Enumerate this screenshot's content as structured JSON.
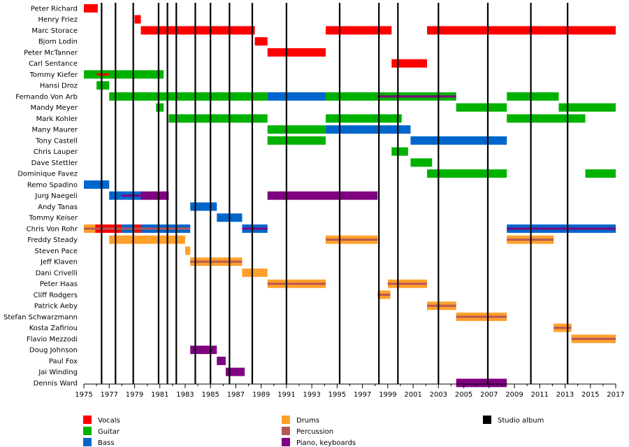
{
  "chart_data": {
    "type": "timeline",
    "title": "",
    "x_axis": {
      "min": 1975,
      "max": 2017,
      "tick_labels": [
        "1975",
        "1977",
        "1979",
        "1981",
        "1983",
        "1985",
        "1987",
        "1989",
        "1991",
        "1993",
        "1995",
        "1997",
        "1999",
        "2001",
        "2003",
        "2005",
        "2007",
        "2009",
        "2011",
        "2013",
        "2015",
        "2017"
      ]
    },
    "studio_albums": [
      1976.4,
      1977.5,
      1978.9,
      1980.9,
      1981.6,
      1982.3,
      1983.8,
      1985.0,
      1986.5,
      1988.3,
      1991.0,
      1995.2,
      1998.3,
      1999.8,
      2003.0,
      2006.9,
      2010.3,
      2013.2
    ],
    "legend": [
      {
        "key": "vocals",
        "label": "Vocals",
        "color": "#ff0000"
      },
      {
        "key": "guitar",
        "label": "Guitar",
        "color": "#00b200"
      },
      {
        "key": "bass",
        "label": "Bass",
        "color": "#0066cc"
      },
      {
        "key": "drums",
        "label": "Drums",
        "color": "#ffa02b"
      },
      {
        "key": "percussion",
        "label": "Percussion",
        "color": "#b65757"
      },
      {
        "key": "keys",
        "label": "Piano, keyboards",
        "color": "#7f0080"
      },
      {
        "key": "album",
        "label": "Studio album",
        "color": "#000000"
      }
    ],
    "members": [
      {
        "name": "Peter Richard",
        "bars": [
          [
            "vocals",
            1975.0,
            1976.1
          ]
        ]
      },
      {
        "name": "Henry Friez",
        "bars": [
          [
            "vocals",
            1979.0,
            1979.5
          ]
        ]
      },
      {
        "name": "Marc Storace",
        "bars": [
          [
            "vocals",
            1979.5,
            1988.5
          ],
          [
            "vocals",
            1994.1,
            1999.3
          ],
          [
            "vocals",
            2002.1,
            2017.0
          ]
        ]
      },
      {
        "name": "Bjorn Lodin",
        "bars": [
          [
            "vocals",
            1988.5,
            1989.5
          ]
        ]
      },
      {
        "name": "Peter McTanner",
        "bars": [
          [
            "vocals",
            1989.5,
            1994.1
          ]
        ]
      },
      {
        "name": "Carl Sentance",
        "bars": [
          [
            "vocals",
            1999.3,
            2002.1
          ]
        ]
      },
      {
        "name": "Tommy Kiefer",
        "bars": [
          [
            "guitar",
            1975.0,
            1981.3
          ]
        ],
        "thin": [
          [
            "vocals",
            1976.0,
            1977.0
          ]
        ]
      },
      {
        "name": "Hansi Droz",
        "bars": [
          [
            "guitar",
            1976.0,
            1977.0
          ]
        ]
      },
      {
        "name": "Fernando Von Arb",
        "bars": [
          [
            "guitar",
            1977.0,
            1989.5
          ],
          [
            "bass",
            1989.5,
            1994.1
          ],
          [
            "guitar",
            1994.1,
            2004.4
          ],
          [
            "guitar",
            2008.4,
            2012.5
          ]
        ],
        "thin": [
          [
            "keys",
            1998.2,
            2004.4
          ]
        ]
      },
      {
        "name": "Mandy Meyer",
        "bars": [
          [
            "guitar",
            1980.7,
            1981.3
          ],
          [
            "guitar",
            2004.4,
            2008.4
          ],
          [
            "guitar",
            2012.5,
            2017.0
          ]
        ]
      },
      {
        "name": "Mark Kohler",
        "bars": [
          [
            "guitar",
            1981.7,
            1989.5
          ],
          [
            "guitar",
            1994.1,
            2000.1
          ],
          [
            "guitar",
            2008.4,
            2014.6
          ]
        ]
      },
      {
        "name": "Many Maurer",
        "bars": [
          [
            "guitar",
            1989.5,
            1994.1
          ],
          [
            "bass",
            1994.1,
            2000.8
          ]
        ]
      },
      {
        "name": "Tony Castell",
        "bars": [
          [
            "guitar",
            1989.5,
            1994.1
          ],
          [
            "bass",
            2000.8,
            2008.4
          ]
        ]
      },
      {
        "name": "Chris Lauper",
        "bars": [
          [
            "guitar",
            1999.3,
            2000.6
          ]
        ]
      },
      {
        "name": "Dave Stettler",
        "bars": [
          [
            "guitar",
            2000.8,
            2002.5
          ]
        ]
      },
      {
        "name": "Dominique Favez",
        "bars": [
          [
            "guitar",
            2002.1,
            2008.4
          ],
          [
            "guitar",
            2014.6,
            2017.0
          ]
        ]
      },
      {
        "name": "Remo Spadino",
        "bars": [
          [
            "bass",
            1975.0,
            1977.0
          ]
        ]
      },
      {
        "name": "Jurg Naegeli",
        "bars": [
          [
            "bass",
            1977.0,
            1979.5
          ],
          [
            "keys",
            1979.5,
            1981.7
          ],
          [
            "keys",
            1989.5,
            1998.2
          ]
        ],
        "thin": [
          [
            "keys",
            1978.0,
            1979.5
          ]
        ]
      },
      {
        "name": "Andy Tanas",
        "bars": [
          [
            "bass",
            1983.4,
            1985.5
          ]
        ]
      },
      {
        "name": "Tommy Keiser",
        "bars": [
          [
            "bass",
            1985.5,
            1987.5
          ]
        ]
      },
      {
        "name": "Chris Von Rohr",
        "bars": [
          [
            "drums",
            1975.0,
            1975.9
          ],
          [
            "vocals",
            1975.9,
            1978.0
          ],
          [
            "bass",
            1978.0,
            1979.0
          ],
          [
            "vocals",
            1979.0,
            1979.5
          ],
          [
            "bass",
            1979.5,
            1983.4
          ],
          [
            "bass",
            1987.5,
            1989.5
          ],
          [
            "bass",
            2008.4,
            2017.0
          ]
        ],
        "thin": [
          [
            "percussion",
            1975.0,
            1983.4
          ],
          [
            "keys",
            1987.5,
            1989.5
          ],
          [
            "keys",
            2008.4,
            2017.0
          ]
        ]
      },
      {
        "name": "Freddy Steady",
        "bars": [
          [
            "drums",
            1977.0,
            1983.0
          ],
          [
            "drums",
            1994.1,
            1998.2
          ],
          [
            "drums",
            2008.4,
            2012.1
          ]
        ],
        "thin": [
          [
            "percussion",
            1994.1,
            1998.2
          ],
          [
            "percussion",
            2008.4,
            2012.1
          ]
        ]
      },
      {
        "name": "Steven Pace",
        "bars": [
          [
            "drums",
            1983.0,
            1983.4
          ]
        ]
      },
      {
        "name": "Jeff Klaven",
        "bars": [
          [
            "drums",
            1983.4,
            1987.5
          ]
        ],
        "thin": [
          [
            "percussion",
            1983.4,
            1987.5
          ]
        ]
      },
      {
        "name": "Dani Crivelli",
        "bars": [
          [
            "drums",
            1987.5,
            1989.5
          ]
        ]
      },
      {
        "name": "Peter Haas",
        "bars": [
          [
            "drums",
            1989.5,
            1994.1
          ],
          [
            "drums",
            1999.0,
            2002.1
          ]
        ],
        "thin": [
          [
            "percussion",
            1989.5,
            1994.1
          ],
          [
            "percussion",
            1999.0,
            2002.1
          ]
        ]
      },
      {
        "name": "Cliff Rodgers",
        "bars": [
          [
            "drums",
            1998.2,
            1999.2
          ]
        ],
        "thin": [
          [
            "percussion",
            1998.2,
            1999.2
          ]
        ]
      },
      {
        "name": "Patrick Aeby",
        "bars": [
          [
            "drums",
            2002.1,
            2004.4
          ]
        ],
        "thin": [
          [
            "percussion",
            2002.1,
            2004.4
          ]
        ]
      },
      {
        "name": "Stefan Schwarzmann",
        "bars": [
          [
            "drums",
            2004.4,
            2008.4
          ]
        ],
        "thin": [
          [
            "percussion",
            2004.4,
            2008.4
          ]
        ]
      },
      {
        "name": "Kosta Zafiriou",
        "bars": [
          [
            "drums",
            2012.1,
            2013.5
          ]
        ],
        "thin": [
          [
            "percussion",
            2012.1,
            2013.5
          ]
        ]
      },
      {
        "name": "Flavio Mezzodi",
        "bars": [
          [
            "drums",
            2013.5,
            2017.0
          ]
        ],
        "thin": [
          [
            "percussion",
            2013.5,
            2017.0
          ]
        ]
      },
      {
        "name": "Doug Johnson",
        "bars": [
          [
            "keys",
            1983.4,
            1985.5
          ]
        ]
      },
      {
        "name": "Paul Fox",
        "bars": [
          [
            "keys",
            1985.5,
            1986.2
          ]
        ]
      },
      {
        "name": "Jai Winding",
        "bars": [
          [
            "keys",
            1986.2,
            1987.7
          ]
        ]
      },
      {
        "name": "Dennis Ward",
        "bars": [
          [
            "keys",
            2004.4,
            2008.4
          ]
        ]
      }
    ]
  }
}
